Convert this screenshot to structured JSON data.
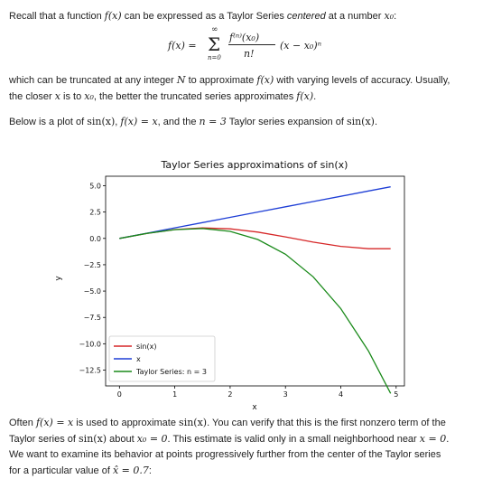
{
  "intro": {
    "t1": "Recall that a function ",
    "fx": "f(x)",
    "t2": " can be expressed as a Taylor Series ",
    "em": "centered",
    "t3": " at a number ",
    "x0": "x₀",
    "t4": ":"
  },
  "formula": {
    "lhs": "f(x) =",
    "sigma": "Σ",
    "upper": "∞",
    "lower": "n=0",
    "numerator": "f⁽ⁿ⁾(x₀)",
    "denominator": "n!",
    "factor": "(x − x₀)ⁿ"
  },
  "truncation": {
    "t1": "which can be truncated at any integer ",
    "N": "N",
    "t2": " to approximate ",
    "fx": "f(x)",
    "t3": " with varying levels of accuracy. Usually,",
    "t4": "the closer ",
    "x": "x",
    "t5": " is to ",
    "x0": "x₀",
    "t6": ", the better the truncated series approximates ",
    "fx2": "f(x)",
    "t7": "."
  },
  "below": {
    "t1": "Below is a plot of ",
    "sinx": "sin(x)",
    "t2": ", ",
    "fxeq": "f(x) = x",
    "t3": ", and the ",
    "neq": "n = 3",
    "t4": " Taylor series expansion of ",
    "sinx2": "sin(x)",
    "t5": "."
  },
  "often": {
    "t1": "Often ",
    "fxeq": "f(x) = x",
    "t2": " is used to approximate ",
    "sinx": "sin(x)",
    "t3": ". You can verify that this is the first nonzero term of the",
    "t4": "Taylor series of ",
    "sinx2": "sin(x)",
    "t5": " about ",
    "x0eq": "x₀ = 0",
    "t6": ". This estimate is valid only in a small neighborhood near ",
    "xeq": "x = 0",
    "t7": ".",
    "t8": "We want to examine its behavior at points progressively further from the center of the Taylor series",
    "t9": "for a particular value of ",
    "xhat": "x̂ = 0.7",
    "t10": ":"
  },
  "chart_data": {
    "type": "line",
    "title": "Taylor Series approximations of sin(x)",
    "xlabel": "x",
    "ylabel": "y",
    "xlim": [
      -0.25,
      5.15
    ],
    "ylim": [
      -14.0,
      5.9
    ],
    "xticks": [
      "0",
      "1",
      "2",
      "3",
      "4",
      "5"
    ],
    "yticks": [
      "5.0",
      "2.5",
      "0.0",
      "−2.5",
      "−5.0",
      "−7.5",
      "−10.0",
      "−12.5"
    ],
    "xtick_values": [
      0,
      1,
      2,
      3,
      4,
      5
    ],
    "ytick_values": [
      5.0,
      2.5,
      0.0,
      -2.5,
      -5.0,
      -7.5,
      -10.0,
      -12.5
    ],
    "grid": false,
    "legend_position": "lower-left",
    "x": [
      0,
      0.5,
      1.0,
      1.5,
      2.0,
      2.5,
      3.0,
      3.5,
      4.0,
      4.5,
      4.9
    ],
    "series": [
      {
        "name": "sin(x)",
        "color": "#d62728",
        "values": [
          0,
          0.479,
          0.841,
          0.997,
          0.909,
          0.598,
          0.141,
          -0.351,
          -0.757,
          -0.978,
          -0.982
        ]
      },
      {
        "name": "x",
        "color": "#1f3fd6",
        "values": [
          0,
          0.5,
          1.0,
          1.5,
          2.0,
          2.5,
          3.0,
          3.5,
          4.0,
          4.5,
          4.9
        ]
      },
      {
        "name": "Taylor Series: n = 3",
        "color": "#1a8a1a",
        "values": [
          0,
          0.479,
          0.833,
          0.938,
          0.667,
          -0.104,
          -1.5,
          -3.646,
          -6.667,
          -10.688,
          -14.708
        ]
      }
    ]
  }
}
